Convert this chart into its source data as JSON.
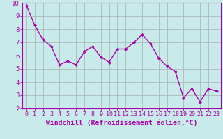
{
  "x": [
    0,
    1,
    2,
    3,
    4,
    5,
    6,
    7,
    8,
    9,
    10,
    11,
    12,
    13,
    14,
    15,
    16,
    17,
    18,
    19,
    20,
    21,
    22,
    23
  ],
  "y": [
    9.8,
    8.3,
    7.2,
    6.7,
    5.3,
    5.6,
    5.3,
    6.3,
    6.7,
    5.9,
    5.5,
    6.5,
    6.5,
    7.0,
    7.6,
    6.9,
    5.8,
    5.2,
    4.8,
    2.8,
    3.5,
    2.5,
    3.5,
    3.3
  ],
  "line_color": "#aa00aa",
  "marker": "D",
  "marker_size": 2.0,
  "bg_color": "#c8eaea",
  "grid_color": "#aabbbb",
  "xlabel": "Windchill (Refroidissement éolien,°C)",
  "xlabel_color": "#aa00aa",
  "tick_color": "#aa00aa",
  "ylim": [
    2,
    10
  ],
  "xlim": [
    -0.5,
    23.5
  ],
  "yticks": [
    2,
    3,
    4,
    5,
    6,
    7,
    8,
    9,
    10
  ],
  "xticks": [
    0,
    1,
    2,
    3,
    4,
    5,
    6,
    7,
    8,
    9,
    10,
    11,
    12,
    13,
    14,
    15,
    16,
    17,
    18,
    19,
    20,
    21,
    22,
    23
  ],
  "linewidth": 1.0,
  "font_size": 6.5,
  "xlabel_fontsize": 7.0
}
